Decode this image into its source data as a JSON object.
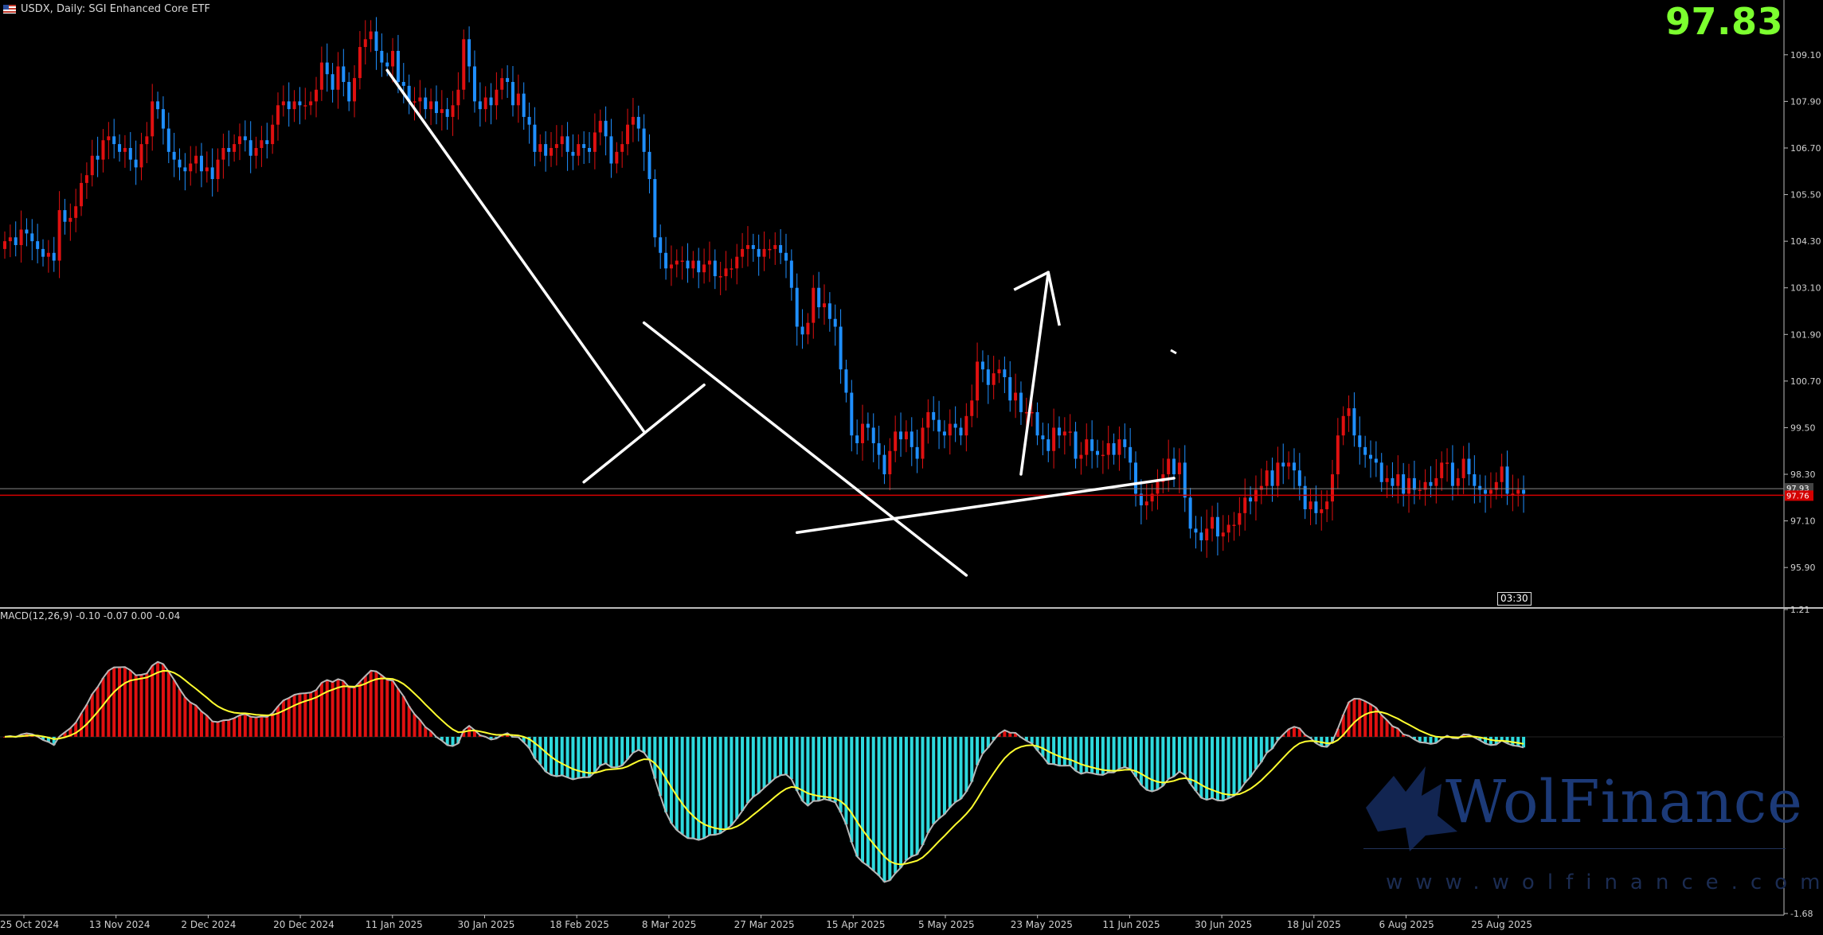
{
  "header": {
    "title": "USDX, Daily:  SGI Enhanced Core ETF",
    "big_price": "97.83",
    "macd_label": "MACD(12,26,9) -0.10 -0.07 0.00 -0.04",
    "timer": "03:30"
  },
  "watermark": {
    "brand": "WolFinance",
    "url": "www.wolfinance.com"
  },
  "colors": {
    "bull": "#e01010",
    "bear": "#1f8fff",
    "macd_pos": "#e01010",
    "macd_neg": "#2dd9dd",
    "signal": "#ffff2f",
    "macd_line": "#b8b8b8",
    "price_line": "#d40000",
    "trendline": "#ffffff",
    "price_text": "#7cff2f"
  },
  "chart_data": [
    {
      "type": "candlestick",
      "symbol": "USDX",
      "timeframe": "Daily",
      "ylim": [
        94.9,
        110.1
      ],
      "y_ticks": [
        "109.10",
        "107.90",
        "106.70",
        "105.50",
        "104.30",
        "103.10",
        "101.90",
        "100.70",
        "99.50",
        "98.30",
        "97.10",
        "95.90"
      ],
      "y_tick_values": [
        109.1,
        107.9,
        106.7,
        105.5,
        104.3,
        103.1,
        101.9,
        100.7,
        99.5,
        98.3,
        97.1,
        95.9
      ],
      "x_labels": [
        "25 Oct 2024",
        "13 Nov 2024",
        "2 Dec 2024",
        "20 Dec 2024",
        "11 Jan 2025",
        "30 Jan 2025",
        "18 Feb 2025",
        "8 Mar 2025",
        "27 Mar 2025",
        "15 Apr 2025",
        "5 May 2025",
        "23 May 2025",
        "11 Jun 2025",
        "30 Jun 2025",
        "18 Jul 2025",
        "6 Aug 2025",
        "25 Aug 2025"
      ],
      "current_price": 97.76,
      "current_price_label": "97.76",
      "bid_price": 97.93,
      "bid_price_label": "97.93",
      "series": [
        {
          "closes": [
            104.3,
            104.4,
            104.2,
            104.6,
            104.5,
            104.3,
            104.1,
            103.9,
            104.0,
            103.8,
            105.1,
            104.8,
            104.9,
            105.2,
            105.8,
            106.0,
            106.5,
            106.4,
            106.9,
            107.0,
            106.8,
            106.6,
            106.7,
            106.4,
            106.2,
            106.8,
            107.0,
            107.9,
            107.7,
            107.2,
            106.6,
            106.4,
            106.2,
            106.1,
            106.3,
            106.5,
            106.1,
            106.2,
            105.9,
            106.4,
            106.7,
            106.6,
            106.8,
            107.0,
            106.9,
            106.5,
            106.7,
            106.9,
            106.8,
            107.3,
            107.8,
            107.9,
            107.7,
            107.9,
            107.8,
            107.8,
            107.9,
            108.2,
            108.9,
            108.6,
            108.2,
            108.8,
            108.4,
            107.9,
            108.5,
            109.3,
            109.5,
            109.7,
            109.2,
            108.9,
            108.8,
            109.2,
            108.4,
            108.3,
            107.9,
            107.9,
            108.0,
            107.7,
            107.9,
            107.6,
            107.7,
            107.5,
            107.8,
            108.2,
            109.5,
            108.8,
            107.9,
            107.7,
            108.0,
            107.8,
            108.2,
            108.5,
            108.4,
            107.8,
            108.1,
            107.5,
            107.3,
            106.6,
            106.8,
            106.5,
            106.7,
            106.8,
            107.0,
            106.6,
            106.5,
            106.8,
            106.7,
            106.6,
            107.1,
            107.4,
            107.0,
            106.3,
            106.6,
            106.8,
            107.3,
            107.5,
            107.2,
            106.6,
            105.9,
            104.4,
            104.0,
            103.6,
            103.7,
            103.8,
            103.8,
            103.6,
            103.8,
            103.5,
            103.7,
            103.8,
            103.4,
            103.4,
            103.6,
            103.6,
            103.9,
            104.1,
            104.2,
            104.1,
            103.9,
            104.1,
            104.1,
            104.2,
            104.0,
            103.8,
            103.1,
            102.1,
            101.9,
            102.2,
            103.1,
            102.6,
            102.7,
            102.3,
            102.1,
            101.0,
            100.4,
            99.3,
            99.1,
            99.6,
            99.5,
            99.1,
            98.8,
            98.3,
            98.9,
            99.4,
            99.2,
            99.4,
            99.0,
            98.7,
            99.5,
            99.9,
            99.7,
            99.4,
            99.3,
            99.6,
            99.5,
            99.3,
            99.8,
            100.2,
            101.2,
            101.0,
            100.6,
            100.9,
            101.0,
            100.8,
            100.2,
            100.4,
            99.9,
            99.9,
            99.9,
            99.3,
            99.2,
            98.9,
            99.5,
            99.3,
            99.4,
            99.4,
            98.7,
            98.8,
            99.2,
            98.9,
            98.8,
            98.8,
            99.1,
            98.8,
            99.2,
            99.0,
            98.6,
            97.8,
            97.5,
            97.6,
            97.8,
            98.1,
            98.3,
            98.7,
            98.3,
            98.6,
            97.7,
            96.9,
            96.8,
            96.6,
            96.9,
            97.2,
            96.7,
            96.8,
            97.0,
            97.0,
            97.3,
            97.7,
            97.6,
            97.9,
            98.0,
            98.4,
            98.0,
            98.6,
            98.5,
            98.6,
            98.4,
            98.0,
            97.4,
            97.6,
            97.3,
            97.4,
            97.6,
            98.3,
            99.3,
            99.8,
            100.0,
            99.3,
            99.0,
            98.8,
            98.7,
            98.6,
            98.1,
            98.2,
            98.0,
            98.3,
            97.8,
            98.2,
            97.9,
            97.9,
            98.1,
            98.0,
            98.2,
            98.6,
            98.6,
            98.0,
            98.2,
            98.7,
            98.3,
            98.0,
            97.9,
            97.8,
            97.9,
            98.1,
            98.5,
            97.8,
            97.8,
            97.9,
            97.8
          ]
        }
      ],
      "trendlines_labels": [],
      "arrow": "up"
    },
    {
      "type": "histogram+line",
      "name": "MACD(12,26,9)",
      "values_label": "-0.10 -0.07 0.00 -0.04",
      "ylim": [
        -1.68,
        1.21
      ],
      "y_ticks": [
        "1.21",
        "-1.68"
      ],
      "y_tick_values": [
        1.21,
        -1.68
      ]
    }
  ]
}
